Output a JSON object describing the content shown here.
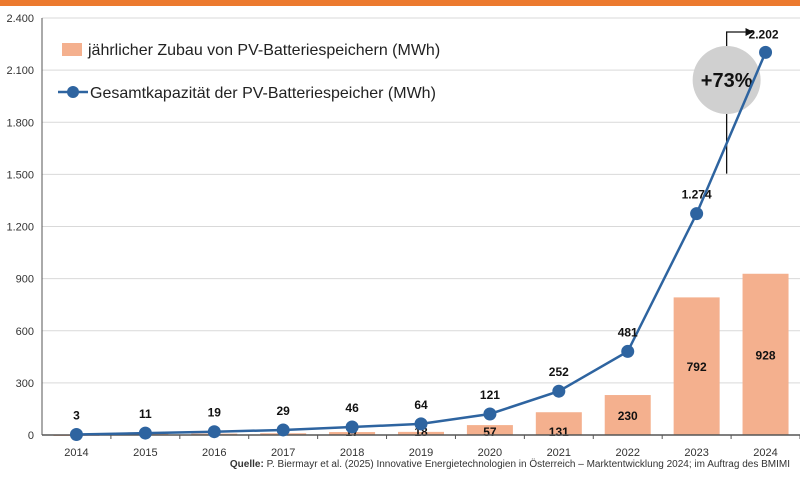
{
  "chart_data": {
    "type": "bar+line",
    "categories": [
      "2014",
      "2015",
      "2016",
      "2017",
      "2018",
      "2019",
      "2020",
      "2021",
      "2022",
      "2023",
      "2024"
    ],
    "series": [
      {
        "name": "jährlicher Zubau von PV-Batteriespeichern (MWh)",
        "type": "bar",
        "color": "#f4b08e",
        "values": [
          3,
          8,
          8,
          10,
          17,
          18,
          57,
          131,
          230,
          792,
          928
        ],
        "labels": [
          null,
          null,
          null,
          null,
          "17",
          "18",
          "57",
          "131",
          "230",
          "792",
          "928"
        ]
      },
      {
        "name": "Gesamtkapazität der PV-Batteriespeicher (MWh)",
        "type": "line",
        "color": "#2e64a0",
        "values": [
          3,
          11,
          19,
          29,
          46,
          64,
          121,
          252,
          481,
          1274,
          2202
        ],
        "labels": [
          "3",
          "11",
          "19",
          "29",
          "46",
          "64",
          "121",
          "252",
          "481",
          "1.274",
          "2.202"
        ]
      }
    ],
    "ylim": [
      0,
      2400
    ],
    "yticks": [
      0,
      300,
      600,
      900,
      1200,
      1500,
      1800,
      2100,
      2400
    ],
    "ytick_labels": [
      "0",
      "300",
      "600",
      "900",
      "1.200",
      "1.500",
      "1.800",
      "2.100",
      "2.400"
    ],
    "grid": true,
    "legend_position": "top-left",
    "annotation": "+73%"
  },
  "source": {
    "label": "Quelle:",
    "text": " P. Biermayr et al. (2025) Innovative Energietechnologien in Österreich – Marktentwicklung 2024; im Auftrag des BMIMI"
  },
  "colors": {
    "accent": "#ec7a2f"
  }
}
